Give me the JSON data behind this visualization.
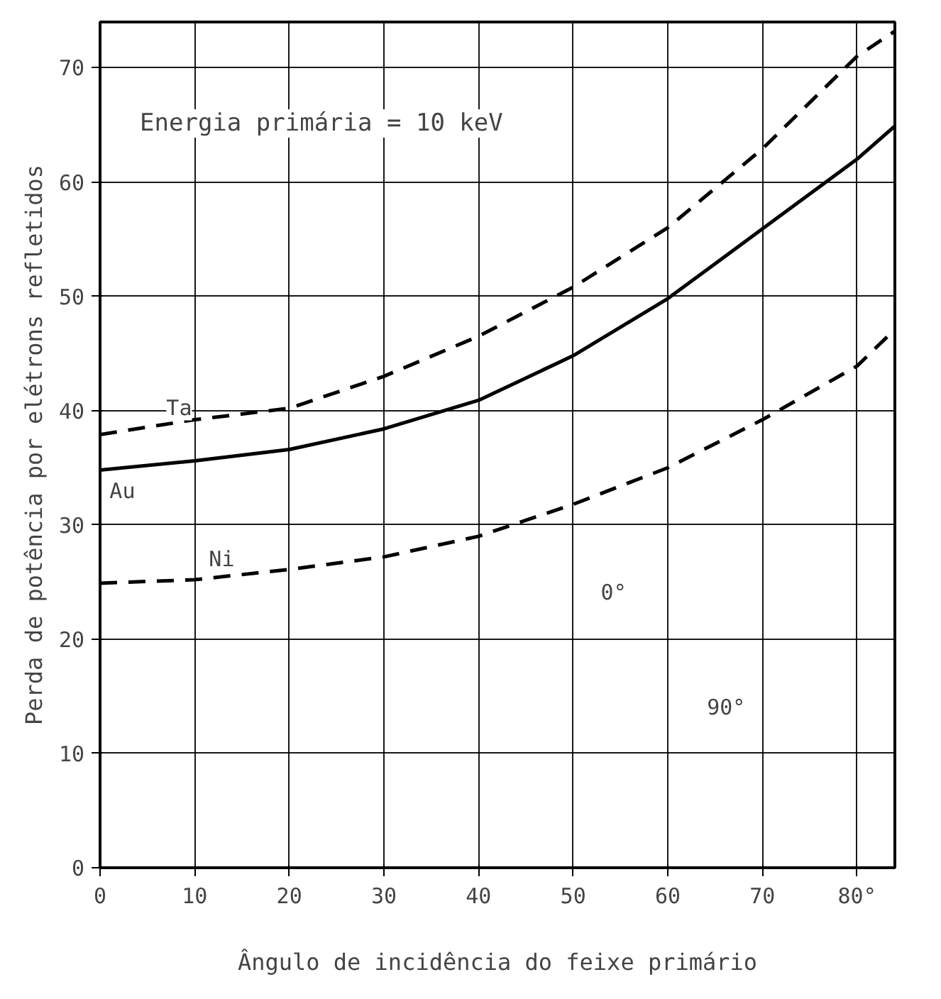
{
  "chart_data": {
    "type": "line",
    "xlabel": "Ângulo de incidência do feixe primário",
    "ylabel": "Perda de potência por elétrons refletidos",
    "annotations": [
      "Energia primária = 10 keV",
      "0°",
      "90°"
    ],
    "x": [
      0,
      10,
      20,
      30,
      40,
      50,
      60,
      70,
      80,
      84
    ],
    "series": [
      {
        "name": "Ta",
        "color": "#000000",
        "line_style": "dashed",
        "values": [
          37.9,
          39.2,
          40.2,
          43.0,
          46.5,
          50.8,
          56.0,
          62.9,
          71.0,
          73.2
        ]
      },
      {
        "name": "Au",
        "color": "#000000",
        "line_style": "solid",
        "values": [
          34.8,
          35.6,
          36.6,
          38.4,
          40.9,
          44.8,
          49.8,
          55.9,
          62.0,
          64.9
        ]
      },
      {
        "name": "Ni",
        "color": "#000000",
        "line_style": "dashed",
        "values": [
          24.9,
          25.2,
          26.1,
          27.2,
          29.0,
          31.8,
          35.0,
          39.2,
          43.9,
          47.1
        ]
      }
    ],
    "xlim": [
      0,
      84
    ],
    "ylim": [
      0,
      74
    ],
    "xticks": [
      0,
      10,
      20,
      30,
      40,
      50,
      60,
      70,
      {
        "value": 80,
        "label": "80°"
      }
    ],
    "yticks": [
      0,
      10,
      20,
      30,
      40,
      50,
      60,
      70
    ],
    "grid": true,
    "marker": "none"
  }
}
